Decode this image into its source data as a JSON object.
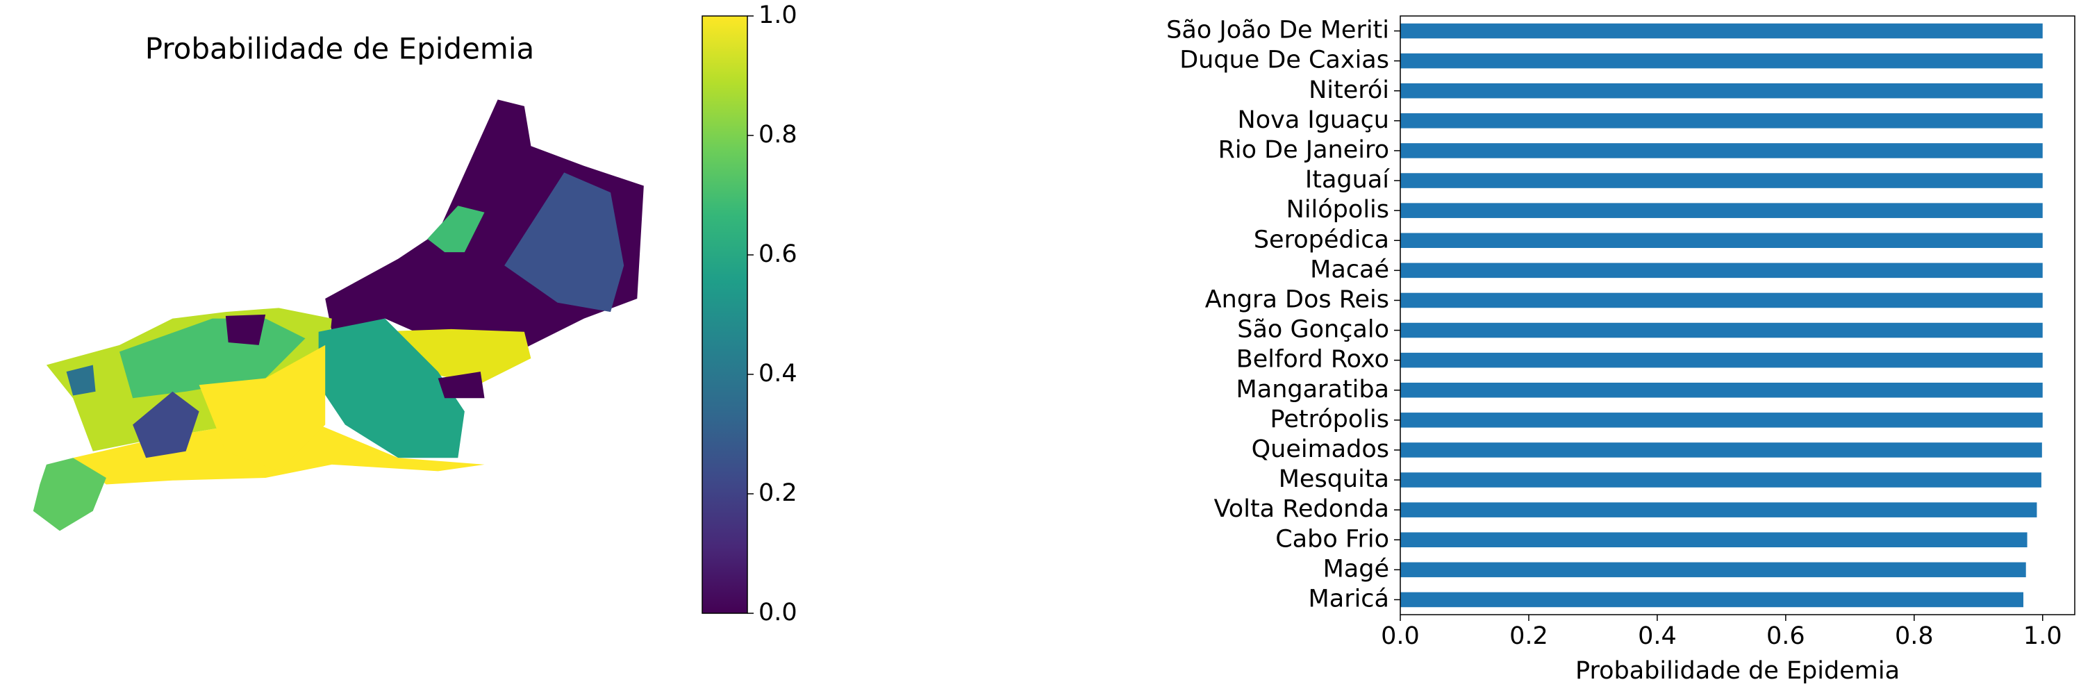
{
  "chart_data": [
    {
      "type": "map",
      "title": "Probabilidade de Epidemia",
      "colormap": "viridis",
      "clim": [
        0,
        1
      ],
      "cticks": [
        {
          "value": 0,
          "label": "0.0"
        },
        {
          "value": 0.2,
          "label": "0.2"
        },
        {
          "value": 0.4,
          "label": "0.4"
        },
        {
          "value": 0.6,
          "label": "0.6"
        },
        {
          "value": 0.8,
          "label": "0.8"
        },
        {
          "value": 1,
          "label": "1.0"
        }
      ]
    },
    {
      "type": "barh",
      "xlabel": "Probabilidade de Epidemia",
      "color": "#1f77b4",
      "categories": [
        "São João De Meriti",
        "Duque De Caxias",
        "Niterói",
        "Nova Iguaçu",
        "Rio De Janeiro",
        "Itaguaí",
        "Nilópolis",
        "Seropédica",
        "Macaé",
        "Angra Dos Reis",
        "São Gonçalo",
        "Belford Roxo",
        "Mangaratiba",
        "Petrópolis",
        "Queimados",
        "Mesquita",
        "Volta Redonda",
        "Cabo Frio",
        "Magé",
        "Maricá"
      ],
      "values": [
        1.0,
        1.0,
        1.0,
        1.0,
        1.0,
        1.0,
        1.0,
        1.0,
        1.0,
        1.0,
        1.0,
        1.0,
        1.0,
        1.0,
        0.999,
        0.998,
        0.991,
        0.976,
        0.974,
        0.97
      ],
      "xlim": [
        0,
        1.05
      ],
      "xticks": [
        {
          "value": 0,
          "label": "0.0"
        },
        {
          "value": 0.2,
          "label": "0.2"
        },
        {
          "value": 0.4,
          "label": "0.4"
        },
        {
          "value": 0.6,
          "label": "0.6"
        },
        {
          "value": 0.8,
          "label": "0.8"
        },
        {
          "value": 1,
          "label": "1.0"
        }
      ]
    }
  ]
}
